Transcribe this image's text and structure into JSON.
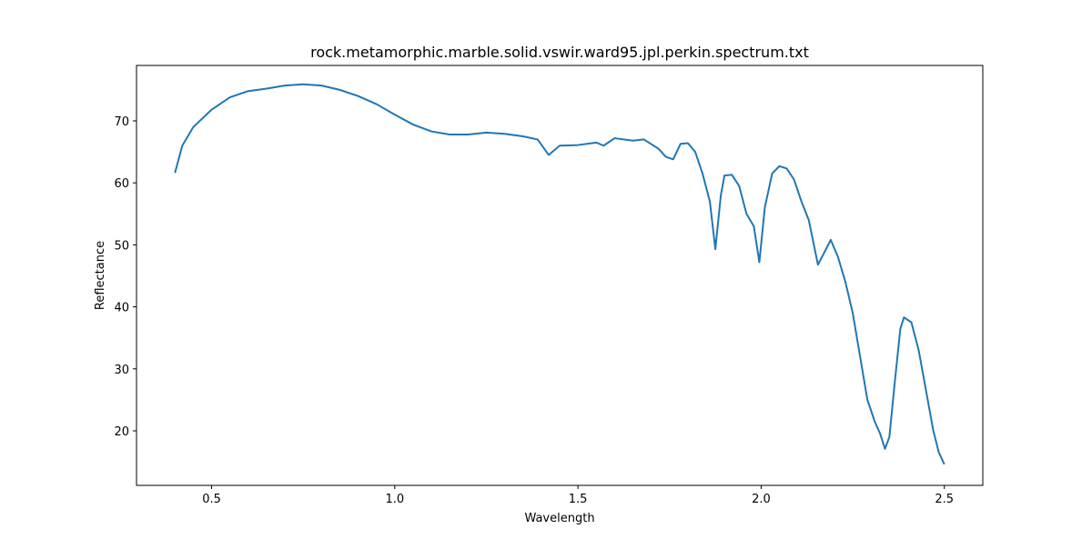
{
  "chart_data": {
    "type": "line",
    "title": "rock.metamorphic.marble.solid.vswir.ward95.jpl.perkin.spectrum.txt",
    "x_label": "Wavelength",
    "y_label": "Reflectance",
    "x": [
      0.4,
      0.42,
      0.45,
      0.5,
      0.55,
      0.6,
      0.65,
      0.7,
      0.75,
      0.8,
      0.85,
      0.9,
      0.95,
      1.0,
      1.05,
      1.1,
      1.15,
      1.2,
      1.25,
      1.3,
      1.35,
      1.39,
      1.42,
      1.45,
      1.5,
      1.55,
      1.57,
      1.6,
      1.65,
      1.68,
      1.72,
      1.74,
      1.76,
      1.78,
      1.8,
      1.82,
      1.84,
      1.86,
      1.875,
      1.89,
      1.9,
      1.92,
      1.94,
      1.96,
      1.98,
      1.995,
      2.01,
      2.03,
      2.05,
      2.07,
      2.09,
      2.11,
      2.13,
      2.155,
      2.17,
      2.19,
      2.21,
      2.23,
      2.25,
      2.27,
      2.29,
      2.31,
      2.325,
      2.338,
      2.35,
      2.365,
      2.38,
      2.39,
      2.41,
      2.43,
      2.45,
      2.47,
      2.485,
      2.5
    ],
    "series": [
      {
        "name": "Reflectance",
        "color": "#1f77b4",
        "values": [
          61.6,
          66,
          69,
          71.8,
          73.8,
          74.8,
          75.2,
          75.7,
          75.9,
          75.7,
          75.0,
          74.0,
          72.7,
          71.0,
          69.4,
          68.3,
          67.8,
          67.8,
          68.1,
          67.9,
          67.5,
          67.0,
          64.5,
          66.0,
          66.1,
          66.5,
          66.0,
          67.2,
          66.8,
          67.0,
          65.5,
          64.2,
          63.8,
          66.3,
          66.4,
          65.0,
          61.5,
          57.0,
          49.3,
          58,
          61.2,
          61.3,
          59.5,
          55,
          53,
          47.2,
          56,
          61.5,
          62.7,
          62.3,
          60.5,
          57.0,
          54.0,
          46.8,
          48.5,
          50.8,
          48,
          44,
          39,
          32,
          25,
          21.5,
          19.5,
          17.1,
          19,
          28,
          36.5,
          38.3,
          37.5,
          33,
          26.5,
          20,
          16.5,
          14.6
        ]
      }
    ],
    "xlim": [
      0.295,
      2.605
    ],
    "xticks": [
      {
        "value": 0.5,
        "label": "0.5"
      },
      {
        "value": 1.0,
        "label": "1.0"
      },
      {
        "value": 1.5,
        "label": "1.5"
      },
      {
        "value": 2.0,
        "label": "2.0"
      },
      {
        "value": 2.5,
        "label": "2.5"
      }
    ],
    "ylim": [
      11.2,
      78.94
    ],
    "yticks": [
      20,
      30,
      40,
      50,
      60,
      70
    ],
    "grid": false
  }
}
